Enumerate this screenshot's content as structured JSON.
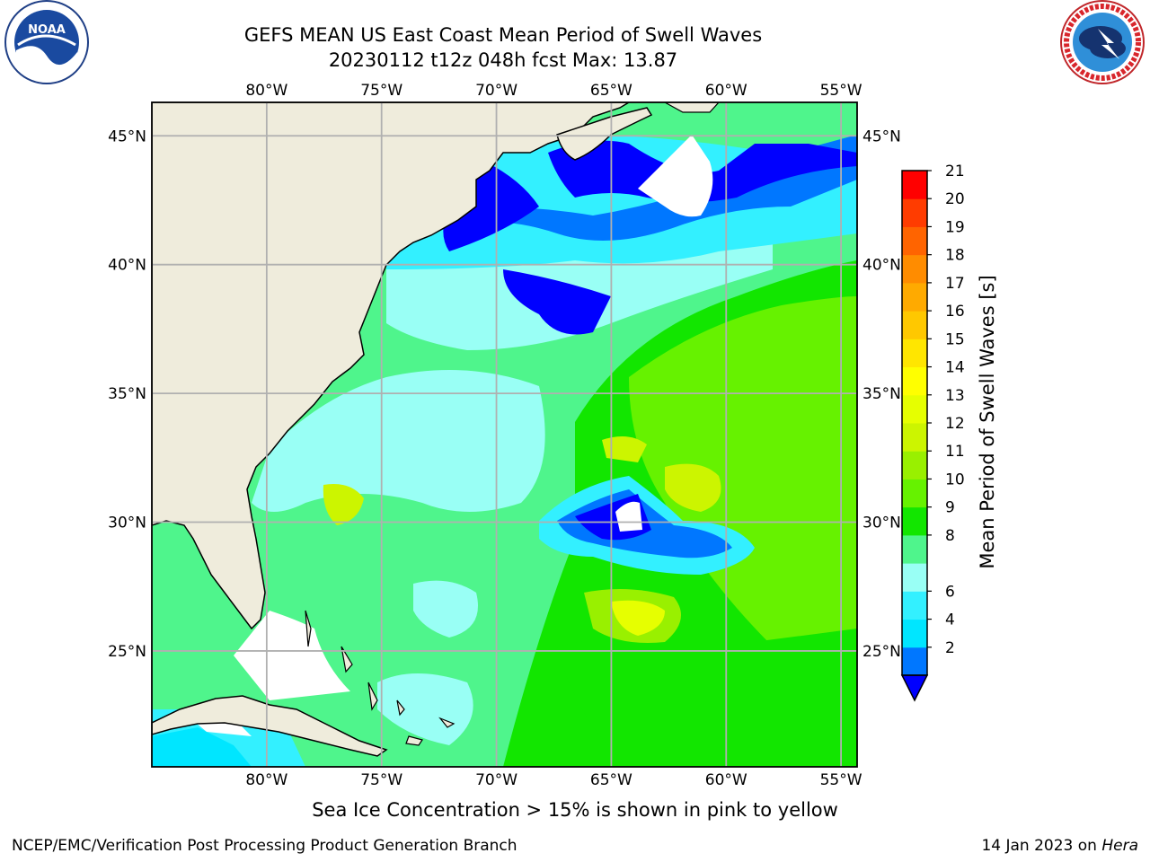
{
  "title": {
    "line1": "GEFS MEAN US East Coast Mean Period of Swell Waves",
    "line2": "20230112 t12z 048h fcst   Max: 13.87"
  },
  "logos": {
    "left": "NOAA",
    "right": "NATIONAL WEATHER SERVICE"
  },
  "map": {
    "lon_labels": [
      "80°W",
      "75°W",
      "70°W",
      "65°W",
      "60°W",
      "55°W"
    ],
    "lat_labels": [
      "45°N",
      "40°N",
      "35°N",
      "30°N",
      "25°N"
    ],
    "lon_values": [
      -80,
      -75,
      -70,
      -65,
      -60,
      -55
    ],
    "lat_values": [
      45,
      40,
      35,
      30,
      25
    ],
    "extent": {
      "lon_min": -85,
      "lon_max": -54.3,
      "lat_min": 20.5,
      "lat_max": 46.3
    },
    "grid": true,
    "land_color": "#efecdc",
    "ocean_palette": {
      "below_2": "#0000ff",
      "4-6": "#00e5ff",
      "6-8": "#33f0ff",
      "8-9": "#99fff5",
      "9-10": "#4ff58c",
      "10-11": "#12e600",
      "11-12": "#66f200",
      "12-13": "#ccf500",
      "13-14": "#e6ff00"
    }
  },
  "colorbar": {
    "label": "Mean Period of Swell Waves [s]",
    "ticks": [
      "2",
      "4",
      "6",
      "7",
      "8",
      "9",
      "10",
      "11",
      "12",
      "13",
      "14",
      "15",
      "16",
      "17",
      "18",
      "19",
      "20",
      "21"
    ],
    "tick_labels_shown": [
      "21",
      "20",
      "19",
      "18",
      "17",
      "16",
      "15",
      "14",
      "13",
      "12",
      "11",
      "10",
      "9",
      "8",
      "6",
      "4",
      "2"
    ],
    "colors": [
      "#0077ff",
      "#00e6ff",
      "#33f0ff",
      "#99fff5",
      "#4ff58c",
      "#12e600",
      "#66f200",
      "#99f000",
      "#ccf500",
      "#e6ff00",
      "#ffff00",
      "#ffe600",
      "#ffc800",
      "#ffaa00",
      "#ff8c00",
      "#ff6400",
      "#ff3c00",
      "#ff0000"
    ],
    "extend_color": "#0000ff"
  },
  "footer": {
    "note": "Sea Ice Concentration > 15% is shown in pink to yellow",
    "credit_left": "NCEP/EMC/Verification Post Processing Product Generation Branch",
    "credit_right_prefix": "14 Jan 2023 on ",
    "credit_right_host": "Hera"
  }
}
